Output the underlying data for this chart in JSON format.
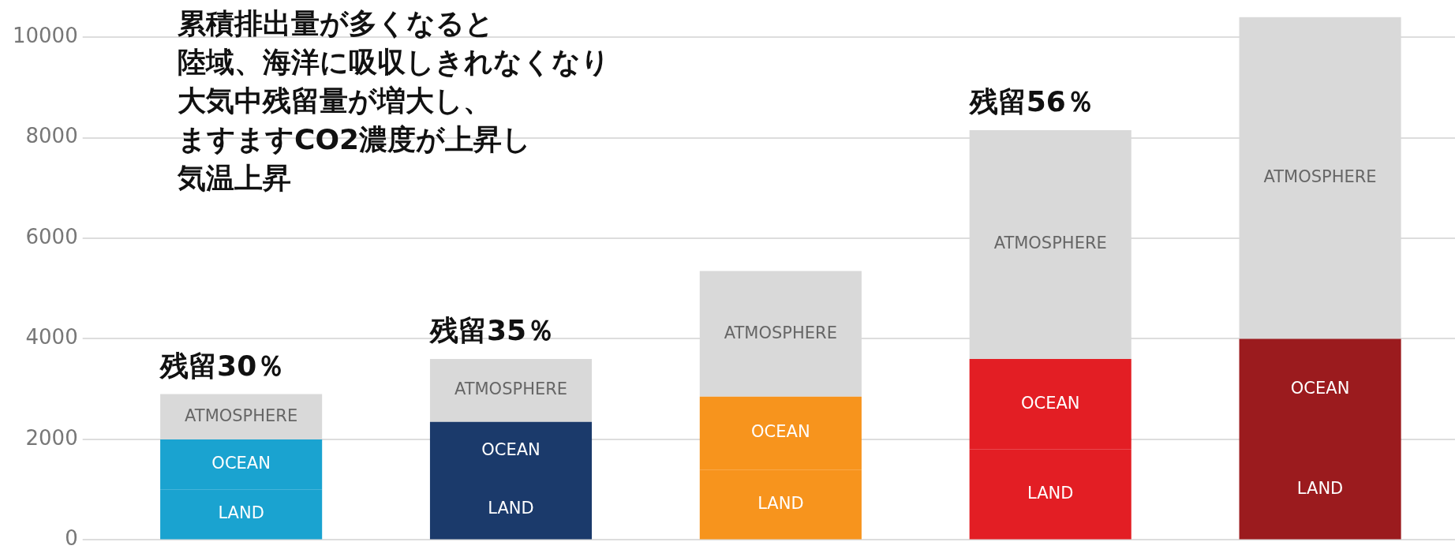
{
  "chart_data": {
    "type": "bar",
    "stacked": true,
    "categories": [
      null,
      null,
      null,
      null,
      null
    ],
    "series": [
      {
        "name": "LAND",
        "colors": [
          "#1aa3d0",
          "#1b3a6b",
          "#f7941d",
          "#e31e24",
          "#9b1b1e"
        ],
        "values": [
          1000,
          1200,
          1400,
          1800,
          2000
        ]
      },
      {
        "name": "OCEAN",
        "colors": [
          "#1aa3d0",
          "#1b3a6b",
          "#f7941d",
          "#e31e24",
          "#9b1b1e"
        ],
        "values": [
          1000,
          1150,
          1450,
          1800,
          2000
        ]
      },
      {
        "name": "ATMOSPHERE",
        "color": "#d9d9d9",
        "values": [
          900,
          1250,
          2500,
          4550,
          6400
        ]
      }
    ],
    "ylim": [
      0,
      10400
    ],
    "yticks": [
      0,
      2000,
      4000,
      6000,
      8000,
      10000
    ],
    "grid": "y",
    "tick_labels": "y",
    "legend": false,
    "annotations": [
      "累積排出量が多くなると",
      "陸域、海洋に吸収しきれなくなり",
      "大気中残留量が増大し、",
      "ますますCO2濃度が上昇し",
      "気温上昇",
      "残留30％",
      "残留35％",
      "残留56％"
    ]
  }
}
